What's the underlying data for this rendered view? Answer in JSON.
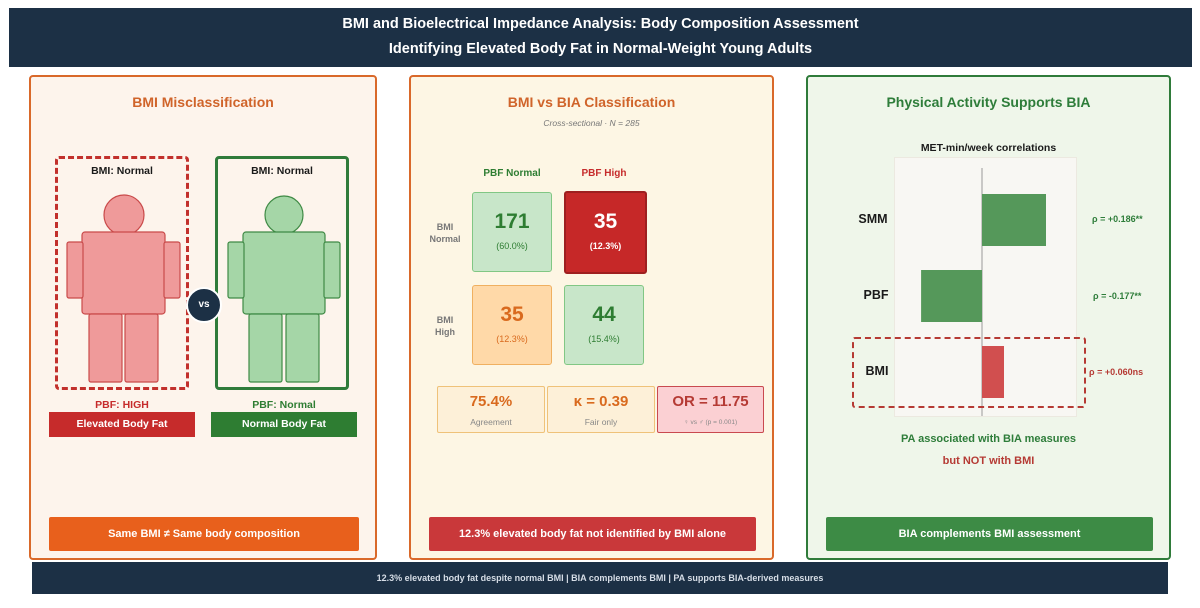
{
  "header": {
    "title_line1": "BMI and Bioelectrical Impedance Analysis: Body Composition Assessment",
    "title_line2": "Identifying Elevated Body Fat in Normal-Weight Young Adults"
  },
  "panel1": {
    "title": "BMI Misclassification",
    "left_box_label": "BMI: Normal",
    "right_box_label": "BMI: Normal",
    "vs_label": "vs",
    "left_pbf": "PBF: HIGH",
    "right_pbf": "PBF: Normal",
    "left_tag": "Elevated Body Fat",
    "right_tag": "Normal Body Fat",
    "bottom": "Same BMI ≠ Same body composition",
    "colors": {
      "elevated": "#c62b2b",
      "normal": "#2e7d32",
      "fig_red": "#ef9a9a",
      "fig_green": "#a5d6a7"
    }
  },
  "panel2": {
    "title": "BMI vs BIA Classification",
    "subtitle": "Cross-sectional · N = 285",
    "col_headers": [
      "PBF Normal",
      "PBF High"
    ],
    "row_headers": [
      [
        "BMI",
        "Normal"
      ],
      [
        "BMI",
        "High"
      ]
    ],
    "cells": [
      {
        "value": "171",
        "pct": "(60.0%)"
      },
      {
        "value": "35",
        "pct": "(12.3%)"
      },
      {
        "value": "35",
        "pct": "(12.3%)"
      },
      {
        "value": "44",
        "pct": "(15.4%)"
      }
    ],
    "stats": [
      {
        "value": "75.4%",
        "label": "Agreement"
      },
      {
        "value": "κ = 0.39",
        "label": "Fair only"
      },
      {
        "value": "OR = 11.75",
        "label": "♀ vs ♂ (p = 0.001)"
      }
    ],
    "bottom": "12.3% elevated body fat not identified by BMI alone"
  },
  "panel3": {
    "title": "Physical Activity Supports BIA",
    "chart_title": "MET-min/week correlations",
    "message1": "PA associated with BIA measures",
    "message2": "but NOT with BMI",
    "bottom": "BIA complements BMI assessment"
  },
  "chart_data": {
    "type": "bar",
    "orientation": "horizontal",
    "title": "MET-min/week correlations",
    "categories": [
      "SMM",
      "PBF",
      "BMI"
    ],
    "values": [
      0.186,
      -0.177,
      0.06
    ],
    "value_labels": [
      "ρ = +0.186**",
      "ρ = -0.177**",
      "ρ = +0.060ns"
    ],
    "colors": [
      "#55985a",
      "#55985a",
      "#d14f4f"
    ],
    "label_colors": [
      "#2e7d3a",
      "#2e7d3a",
      "#b53a34"
    ],
    "xlim": [
      -0.22,
      0.22
    ],
    "grid": false
  },
  "footer": {
    "text": "12.3% elevated body fat despite normal BMI   |   BIA complements BMI   |   PA supports BIA-derived measures"
  }
}
